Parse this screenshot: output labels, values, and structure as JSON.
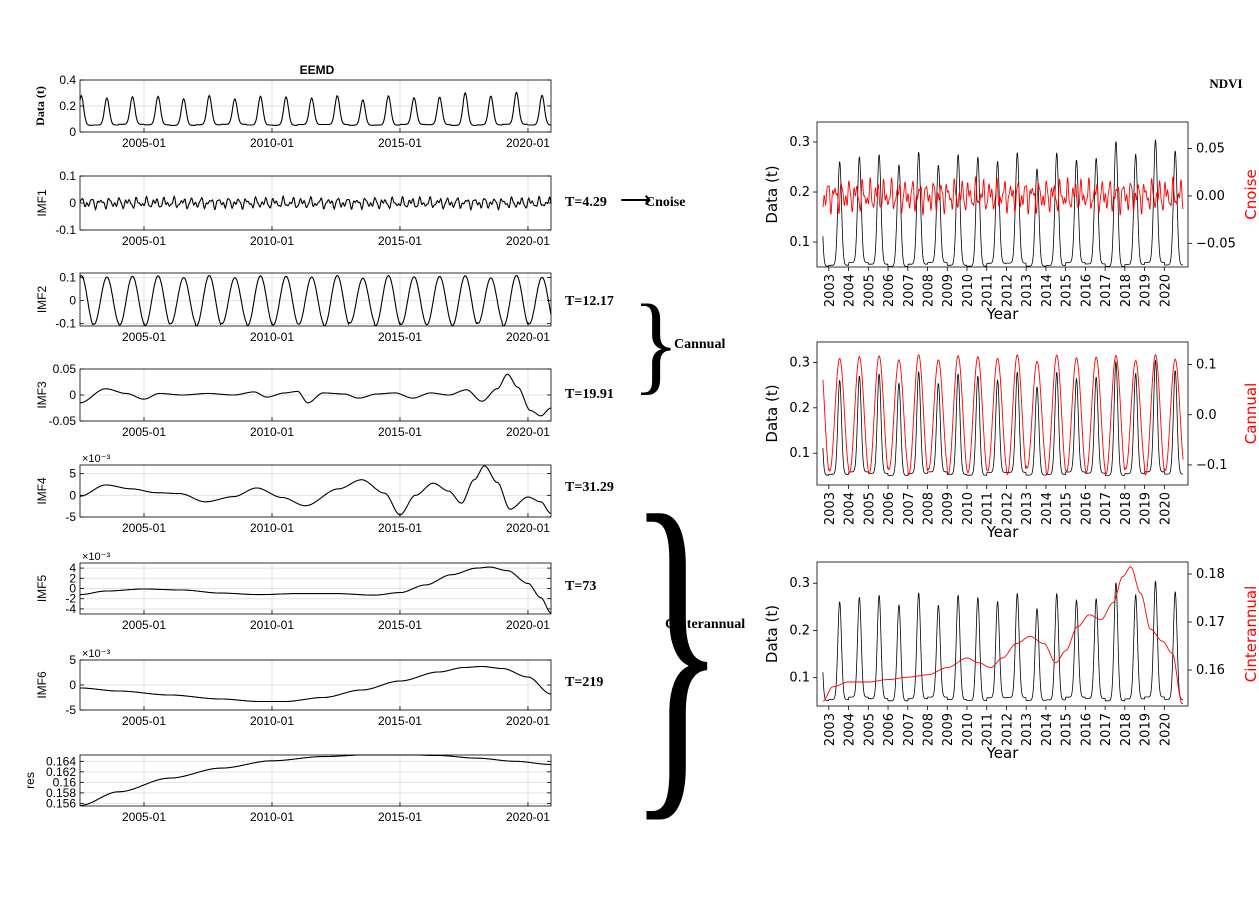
{
  "title": "EEMD",
  "right_title": "NDVI",
  "left_panels": [
    {
      "ylabel": "Data (t)",
      "ymin": 0,
      "ymax": 0.4,
      "yticks": [
        0,
        0.2,
        0.4
      ],
      "ytick_labels": [
        "0",
        "0.2",
        "0.4"
      ],
      "scale_note": "",
      "period": "",
      "wave": {
        "kind": "data"
      }
    },
    {
      "ylabel": "IMF1",
      "ymin": -0.1,
      "ymax": 0.1,
      "yticks": [
        -0.1,
        0,
        0.1
      ],
      "ytick_labels": [
        "-0.1",
        "0",
        "0.1"
      ],
      "scale_note": "",
      "period": "T=4.29",
      "wave": {
        "kind": "noise",
        "amp": 0.022
      }
    },
    {
      "ylabel": "IMF2",
      "ymin": -0.11,
      "ymax": 0.12,
      "yticks": [
        -0.1,
        0,
        0.1
      ],
      "ytick_labels": [
        "-0.1",
        "0",
        "0.1"
      ],
      "scale_note": "",
      "period": "T=12.17",
      "wave": {
        "kind": "annual",
        "amp": 0.105
      }
    },
    {
      "ylabel": "IMF3",
      "ymin": -0.05,
      "ymax": 0.05,
      "yticks": [
        -0.05,
        0,
        0.05
      ],
      "ytick_labels": [
        "-0.05",
        "0",
        "0.05"
      ],
      "scale_note": "",
      "period": "T=19.91",
      "wave": {
        "kind": "points",
        "pts": [
          [
            2002.5,
            -0.015
          ],
          [
            2003.5,
            0.012
          ],
          [
            2004.3,
            0.003
          ],
          [
            2005.0,
            -0.008
          ],
          [
            2005.6,
            0.003
          ],
          [
            2006.5,
            0.0
          ],
          [
            2007.5,
            0.003
          ],
          [
            2008.5,
            0.0
          ],
          [
            2009.3,
            0.006
          ],
          [
            2009.8,
            -0.004
          ],
          [
            2010.5,
            0.004
          ],
          [
            2011.0,
            0.007
          ],
          [
            2011.4,
            -0.015
          ],
          [
            2012.0,
            0.004
          ],
          [
            2012.8,
            0.002
          ],
          [
            2013.4,
            -0.006
          ],
          [
            2014.1,
            0.002
          ],
          [
            2014.8,
            0.004
          ],
          [
            2015.5,
            -0.006
          ],
          [
            2016.2,
            0.004
          ],
          [
            2016.9,
            0.0
          ],
          [
            2017.6,
            0.01
          ],
          [
            2018.2,
            -0.012
          ],
          [
            2018.8,
            0.012
          ],
          [
            2019.2,
            0.04
          ],
          [
            2019.6,
            0.015
          ],
          [
            2020.1,
            -0.03
          ],
          [
            2020.5,
            -0.04
          ],
          [
            2020.9,
            -0.025
          ]
        ]
      }
    },
    {
      "ylabel": "IMF4",
      "ymin": -5,
      "ymax": 7,
      "yticks": [
        -5,
        0,
        5
      ],
      "ytick_labels": [
        "-5",
        "0",
        "5"
      ],
      "scale_note": "×10⁻³",
      "period": "T=31.29",
      "wave": {
        "kind": "points",
        "pts": [
          [
            2002.5,
            -0.2
          ],
          [
            2003.5,
            2.4
          ],
          [
            2004.5,
            1.5
          ],
          [
            2005.5,
            0.6
          ],
          [
            2006.4,
            0.4
          ],
          [
            2007.4,
            -1.5
          ],
          [
            2008.5,
            -0.3
          ],
          [
            2009.4,
            1.7
          ],
          [
            2010.4,
            -0.5
          ],
          [
            2011.3,
            -2.4
          ],
          [
            2012.6,
            1.5
          ],
          [
            2013.5,
            3.6
          ],
          [
            2014.4,
            0.5
          ],
          [
            2015.0,
            -4.5
          ],
          [
            2015.6,
            0.0
          ],
          [
            2016.3,
            2.8
          ],
          [
            2016.9,
            1.0
          ],
          [
            2017.4,
            -1.8
          ],
          [
            2017.9,
            3.6
          ],
          [
            2018.3,
            6.8
          ],
          [
            2018.8,
            3.0
          ],
          [
            2019.3,
            -3.2
          ],
          [
            2020.0,
            -0.4
          ],
          [
            2020.5,
            -1.5
          ],
          [
            2020.9,
            -4.2
          ]
        ]
      }
    },
    {
      "ylabel": "IMF5",
      "ymin": -5,
      "ymax": 5,
      "yticks": [
        -4,
        -2,
        0,
        2,
        4
      ],
      "ytick_labels": [
        "-4",
        "-2",
        "0",
        "2",
        "4"
      ],
      "scale_note": "×10⁻³",
      "period": "T=73",
      "wave": {
        "kind": "points",
        "pts": [
          [
            2002.5,
            -1.2
          ],
          [
            2003.5,
            -0.5
          ],
          [
            2005.0,
            -0.1
          ],
          [
            2006.5,
            -0.3
          ],
          [
            2008.0,
            -0.9
          ],
          [
            2009.5,
            -1.2
          ],
          [
            2011.0,
            -1.0
          ],
          [
            2012.5,
            -1.0
          ],
          [
            2014.0,
            -1.3
          ],
          [
            2015.0,
            -0.8
          ],
          [
            2016.0,
            0.7
          ],
          [
            2017.0,
            2.7
          ],
          [
            2018.0,
            4.0
          ],
          [
            2018.5,
            4.2
          ],
          [
            2019.2,
            3.5
          ],
          [
            2020.0,
            1.0
          ],
          [
            2020.5,
            -1.8
          ],
          [
            2020.9,
            -4.8
          ]
        ]
      }
    },
    {
      "ylabel": "IMF6",
      "ymin": -5,
      "ymax": 5,
      "yticks": [
        -5,
        0,
        5
      ],
      "ytick_labels": [
        "-5",
        "0",
        "5"
      ],
      "scale_note": "×10⁻³",
      "period": "T=219",
      "wave": {
        "kind": "points",
        "pts": [
          [
            2002.5,
            -0.6
          ],
          [
            2004.0,
            -1.2
          ],
          [
            2006.0,
            -2.0
          ],
          [
            2008.0,
            -2.8
          ],
          [
            2009.5,
            -3.3
          ],
          [
            2010.5,
            -3.3
          ],
          [
            2012.0,
            -2.5
          ],
          [
            2013.5,
            -1.0
          ],
          [
            2015.0,
            0.8
          ],
          [
            2016.5,
            2.6
          ],
          [
            2017.5,
            3.5
          ],
          [
            2018.2,
            3.7
          ],
          [
            2019.0,
            3.3
          ],
          [
            2020.0,
            1.6
          ],
          [
            2020.9,
            -1.8
          ]
        ]
      }
    },
    {
      "ylabel": "res",
      "ymin": 0.1555,
      "ymax": 0.1652,
      "yticks": [
        0.156,
        0.158,
        0.16,
        0.162,
        0.164
      ],
      "ytick_labels": [
        "0.156",
        "0.158",
        "0.16",
        "0.162",
        "0.164"
      ],
      "scale_note": "",
      "period": "",
      "wave": {
        "kind": "points",
        "pts": [
          [
            2002.5,
            0.1556
          ],
          [
            2004.0,
            0.1582
          ],
          [
            2006.0,
            0.1608
          ],
          [
            2008.0,
            0.1627
          ],
          [
            2010.0,
            0.1641
          ],
          [
            2012.0,
            0.1649
          ],
          [
            2014.0,
            0.1653
          ],
          [
            2015.0,
            0.1653
          ],
          [
            2016.5,
            0.1651
          ],
          [
            2018.0,
            0.1646
          ],
          [
            2019.5,
            0.164
          ],
          [
            2020.9,
            0.1634
          ]
        ]
      }
    }
  ],
  "left_xticks": [
    2005,
    2010,
    2015,
    2020
  ],
  "left_xtick_labels": [
    "2005-01",
    "2010-01",
    "2015-01",
    "2020-01"
  ],
  "left_xrange": [
    2002.5,
    2020.9
  ],
  "groups": [
    {
      "label": "Cnoise",
      "arrow": "⟶"
    },
    {
      "label": "Cannual",
      "brace": "}"
    },
    {
      "label": "Cinterannual",
      "brace": "}"
    }
  ],
  "chart_data": [
    {
      "type": "line",
      "title": "",
      "xlabel": "Year",
      "ylabel": "Data (t)",
      "y2label": "Cnoise",
      "x_categories": [
        "2003",
        "2004",
        "2005",
        "2006",
        "2007",
        "2008",
        "2009",
        "2010",
        "2011",
        "2012",
        "2013",
        "2014",
        "2015",
        "2016",
        "2017",
        "2018",
        "2019",
        "2020"
      ],
      "xrange": [
        2002.4,
        2021.2
      ],
      "ylim": [
        0.05,
        0.34
      ],
      "yticks": [
        0.1,
        0.2,
        0.3
      ],
      "ytick_labels": [
        "0.1",
        "0.2",
        "0.3"
      ],
      "y2lim": [
        -0.075,
        0.078
      ],
      "y2ticks": [
        -0.05,
        0.0,
        0.05
      ],
      "y2tick_labels": [
        "−0.05",
        "0.00",
        "0.05"
      ],
      "series": [
        {
          "name": "Data (t)",
          "color": "#000000",
          "axis": "left",
          "kind": "data"
        },
        {
          "name": "Cnoise",
          "color": "#ff0000",
          "axis": "right",
          "kind": "noise"
        }
      ]
    },
    {
      "type": "line",
      "title": "",
      "xlabel": "Year",
      "ylabel": "Data (t)",
      "y2label": "Cannual",
      "x_categories": [
        "2003",
        "2004",
        "2005",
        "2006",
        "2007",
        "2008",
        "2009",
        "2010",
        "2011",
        "2012",
        "2013",
        "2014",
        "2015",
        "2016",
        "2017",
        "2018",
        "2019",
        "2020"
      ],
      "xrange": [
        2002.4,
        2021.2
      ],
      "ylim": [
        0.03,
        0.345
      ],
      "yticks": [
        0.1,
        0.2,
        0.3
      ],
      "ytick_labels": [
        "0.1",
        "0.2",
        "0.3"
      ],
      "y2lim": [
        -0.14,
        0.145
      ],
      "y2ticks": [
        -0.1,
        0.0,
        0.1
      ],
      "y2tick_labels": [
        "−0.1",
        "0.0",
        "0.1"
      ],
      "series": [
        {
          "name": "Data (t)",
          "color": "#000000",
          "axis": "left",
          "kind": "data"
        },
        {
          "name": "Cannual",
          "color": "#ff0000",
          "axis": "right",
          "kind": "annual"
        }
      ]
    },
    {
      "type": "line",
      "title": "",
      "xlabel": "Year",
      "ylabel": "Data (t)",
      "y2label": "Cinterannual",
      "x_categories": [
        "2003",
        "2004",
        "2005",
        "2006",
        "2007",
        "2008",
        "2009",
        "2010",
        "2011",
        "2012",
        "2013",
        "2014",
        "2015",
        "2016",
        "2017",
        "2018",
        "2019",
        "2020"
      ],
      "xrange": [
        2002.4,
        2021.2
      ],
      "ylim": [
        0.04,
        0.345
      ],
      "yticks": [
        0.1,
        0.2,
        0.3
      ],
      "ytick_labels": [
        "0.1",
        "0.2",
        "0.3"
      ],
      "y2lim": [
        0.1525,
        0.1825
      ],
      "y2ticks": [
        0.16,
        0.17,
        0.18
      ],
      "y2tick_labels": [
        "0.16",
        "0.17",
        "0.18"
      ],
      "series": [
        {
          "name": "Data (t)",
          "color": "#000000",
          "axis": "left",
          "kind": "data"
        },
        {
          "name": "Cinterannual",
          "color": "#ff0000",
          "axis": "right",
          "kind": "points",
          "pts": [
            [
              2002.7,
              0.1535
            ],
            [
              2003.2,
              0.1565
            ],
            [
              2004.0,
              0.1575
            ],
            [
              2005.0,
              0.1575
            ],
            [
              2006.0,
              0.158
            ],
            [
              2007.0,
              0.1585
            ],
            [
              2008.0,
              0.159
            ],
            [
              2009.0,
              0.1605
            ],
            [
              2010.0,
              0.1625
            ],
            [
              2010.6,
              0.1615
            ],
            [
              2011.2,
              0.1605
            ],
            [
              2011.8,
              0.1625
            ],
            [
              2012.5,
              0.1655
            ],
            [
              2013.2,
              0.167
            ],
            [
              2013.9,
              0.1655
            ],
            [
              2014.5,
              0.1615
            ],
            [
              2015.0,
              0.164
            ],
            [
              2015.6,
              0.169
            ],
            [
              2016.2,
              0.1715
            ],
            [
              2016.8,
              0.1705
            ],
            [
              2017.4,
              0.174
            ],
            [
              2017.9,
              0.1795
            ],
            [
              2018.3,
              0.1815
            ],
            [
              2018.8,
              0.176
            ],
            [
              2019.3,
              0.1685
            ],
            [
              2019.9,
              0.166
            ],
            [
              2020.4,
              0.1635
            ],
            [
              2020.9,
              0.153
            ]
          ]
        }
      ]
    }
  ]
}
